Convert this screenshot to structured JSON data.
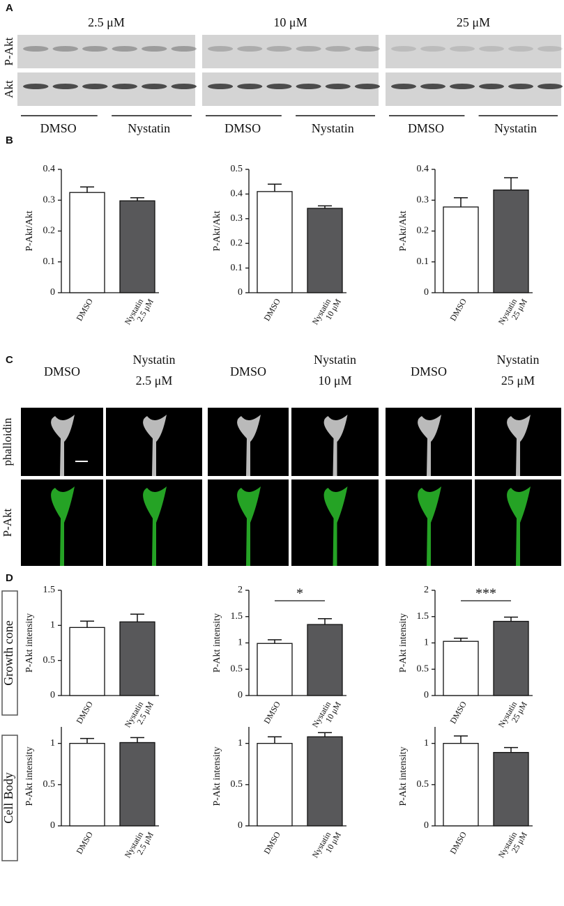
{
  "panel_labels": [
    "A",
    "B",
    "C",
    "D"
  ],
  "blot": {
    "concentrations": [
      "2.5 μM",
      "10 μM",
      "25 μM"
    ],
    "rows": [
      "P-Akt",
      "Akt"
    ],
    "groups": [
      "DMSO",
      "Nystatin"
    ]
  },
  "images": {
    "columns": [
      [
        "DMSO"
      ],
      [
        "Nystatin",
        "2.5 μM"
      ],
      [
        "DMSO"
      ],
      [
        "Nystatin",
        "10 μM"
      ],
      [
        "DMSO"
      ],
      [
        "Nystatin",
        "25 μM"
      ]
    ],
    "rows": [
      "phalloidin",
      "P-Akt"
    ]
  },
  "row_labels": [
    "Growth cone",
    "Cell Body"
  ],
  "chart_data": [
    {
      "type": "bar",
      "ylabel": "P-Akt/Akt",
      "categories": [
        "DMSO",
        "Nystatin 2.5 μM"
      ],
      "values": [
        0.325,
        0.298
      ],
      "errors": [
        0.018,
        0.01
      ],
      "colors": [
        "#ffffff",
        "#58585a"
      ],
      "ylim": [
        0,
        0.4
      ],
      "yticks": [
        0,
        0.1,
        0.2,
        0.3,
        0.4
      ]
    },
    {
      "type": "bar",
      "ylabel": "P-Akt/Akt",
      "categories": [
        "DMSO",
        "Nystatin 10 μM"
      ],
      "values": [
        0.41,
        0.342
      ],
      "errors": [
        0.03,
        0.01
      ],
      "colors": [
        "#ffffff",
        "#58585a"
      ],
      "ylim": [
        0,
        0.5
      ],
      "yticks": [
        0,
        0.1,
        0.2,
        0.3,
        0.4,
        0.5
      ]
    },
    {
      "type": "bar",
      "ylabel": "P-Akt/Akt",
      "categories": [
        "DMSO",
        "Nystatin 25 μM"
      ],
      "values": [
        0.278,
        0.333
      ],
      "errors": [
        0.03,
        0.04
      ],
      "colors": [
        "#ffffff",
        "#58585a"
      ],
      "ylim": [
        0,
        0.4
      ],
      "yticks": [
        0,
        0.1,
        0.2,
        0.3,
        0.4
      ]
    },
    {
      "type": "bar",
      "ylabel": "P-Akt intensity",
      "categories": [
        "DMSO",
        "Nystatin 2.5 μM"
      ],
      "values": [
        0.97,
        1.05
      ],
      "errors": [
        0.09,
        0.11
      ],
      "colors": [
        "#ffffff",
        "#58585a"
      ],
      "ylim": [
        0,
        1.5
      ],
      "yticks": [
        0,
        0.5,
        1,
        1.5
      ]
    },
    {
      "type": "bar",
      "ylabel": "P-Akt intensity",
      "categories": [
        "DMSO",
        "Nystatin 10 μM"
      ],
      "values": [
        0.99,
        1.35
      ],
      "errors": [
        0.07,
        0.11
      ],
      "colors": [
        "#ffffff",
        "#58585a"
      ],
      "ylim": [
        0,
        2
      ],
      "yticks": [
        0,
        0.5,
        1,
        1.5,
        2
      ],
      "significance": "*"
    },
    {
      "type": "bar",
      "ylabel": "P-Akt intensity",
      "categories": [
        "DMSO",
        "Nystatin 25 μM"
      ],
      "values": [
        1.03,
        1.41
      ],
      "errors": [
        0.06,
        0.08
      ],
      "colors": [
        "#ffffff",
        "#58585a"
      ],
      "ylim": [
        0,
        2
      ],
      "yticks": [
        0,
        0.5,
        1,
        1.5,
        2
      ],
      "significance": "***"
    },
    {
      "type": "bar",
      "ylabel": "P-Akt intensity",
      "categories": [
        "DMSO",
        "Nystatin 2.5 μM"
      ],
      "values": [
        1.0,
        1.01
      ],
      "errors": [
        0.06,
        0.06
      ],
      "colors": [
        "#ffffff",
        "#58585a"
      ],
      "ylim": [
        0,
        1.2
      ],
      "yticks": [
        0,
        0.5,
        1
      ]
    },
    {
      "type": "bar",
      "ylabel": "P-Akt intensity",
      "categories": [
        "DMSO",
        "Nystatin 10 μM"
      ],
      "values": [
        1.0,
        1.08
      ],
      "errors": [
        0.08,
        0.05
      ],
      "colors": [
        "#ffffff",
        "#58585a"
      ],
      "ylim": [
        0,
        1.2
      ],
      "yticks": [
        0,
        0.5,
        1
      ]
    },
    {
      "type": "bar",
      "ylabel": "P-Akt intensity",
      "categories": [
        "DMSO",
        "Nystatin 25 μM"
      ],
      "values": [
        1.0,
        0.89
      ],
      "errors": [
        0.09,
        0.06
      ],
      "colors": [
        "#ffffff",
        "#58585a"
      ],
      "ylim": [
        0,
        1.2
      ],
      "yticks": [
        0,
        0.5,
        1
      ]
    }
  ]
}
